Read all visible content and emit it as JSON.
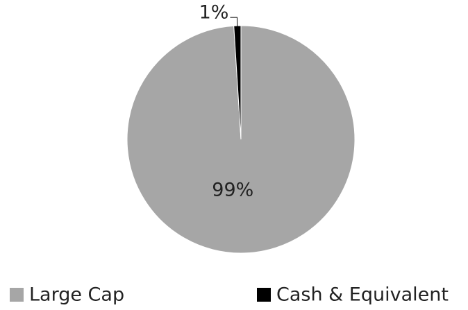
{
  "chart_data": {
    "type": "pie",
    "categories": [
      "Large Cap",
      "Cash & Equivalent"
    ],
    "values": [
      99,
      1
    ],
    "value_labels": [
      "99%",
      "1%"
    ],
    "colors": [
      "#a6a6a6",
      "#000000"
    ],
    "legend": "bottom"
  }
}
